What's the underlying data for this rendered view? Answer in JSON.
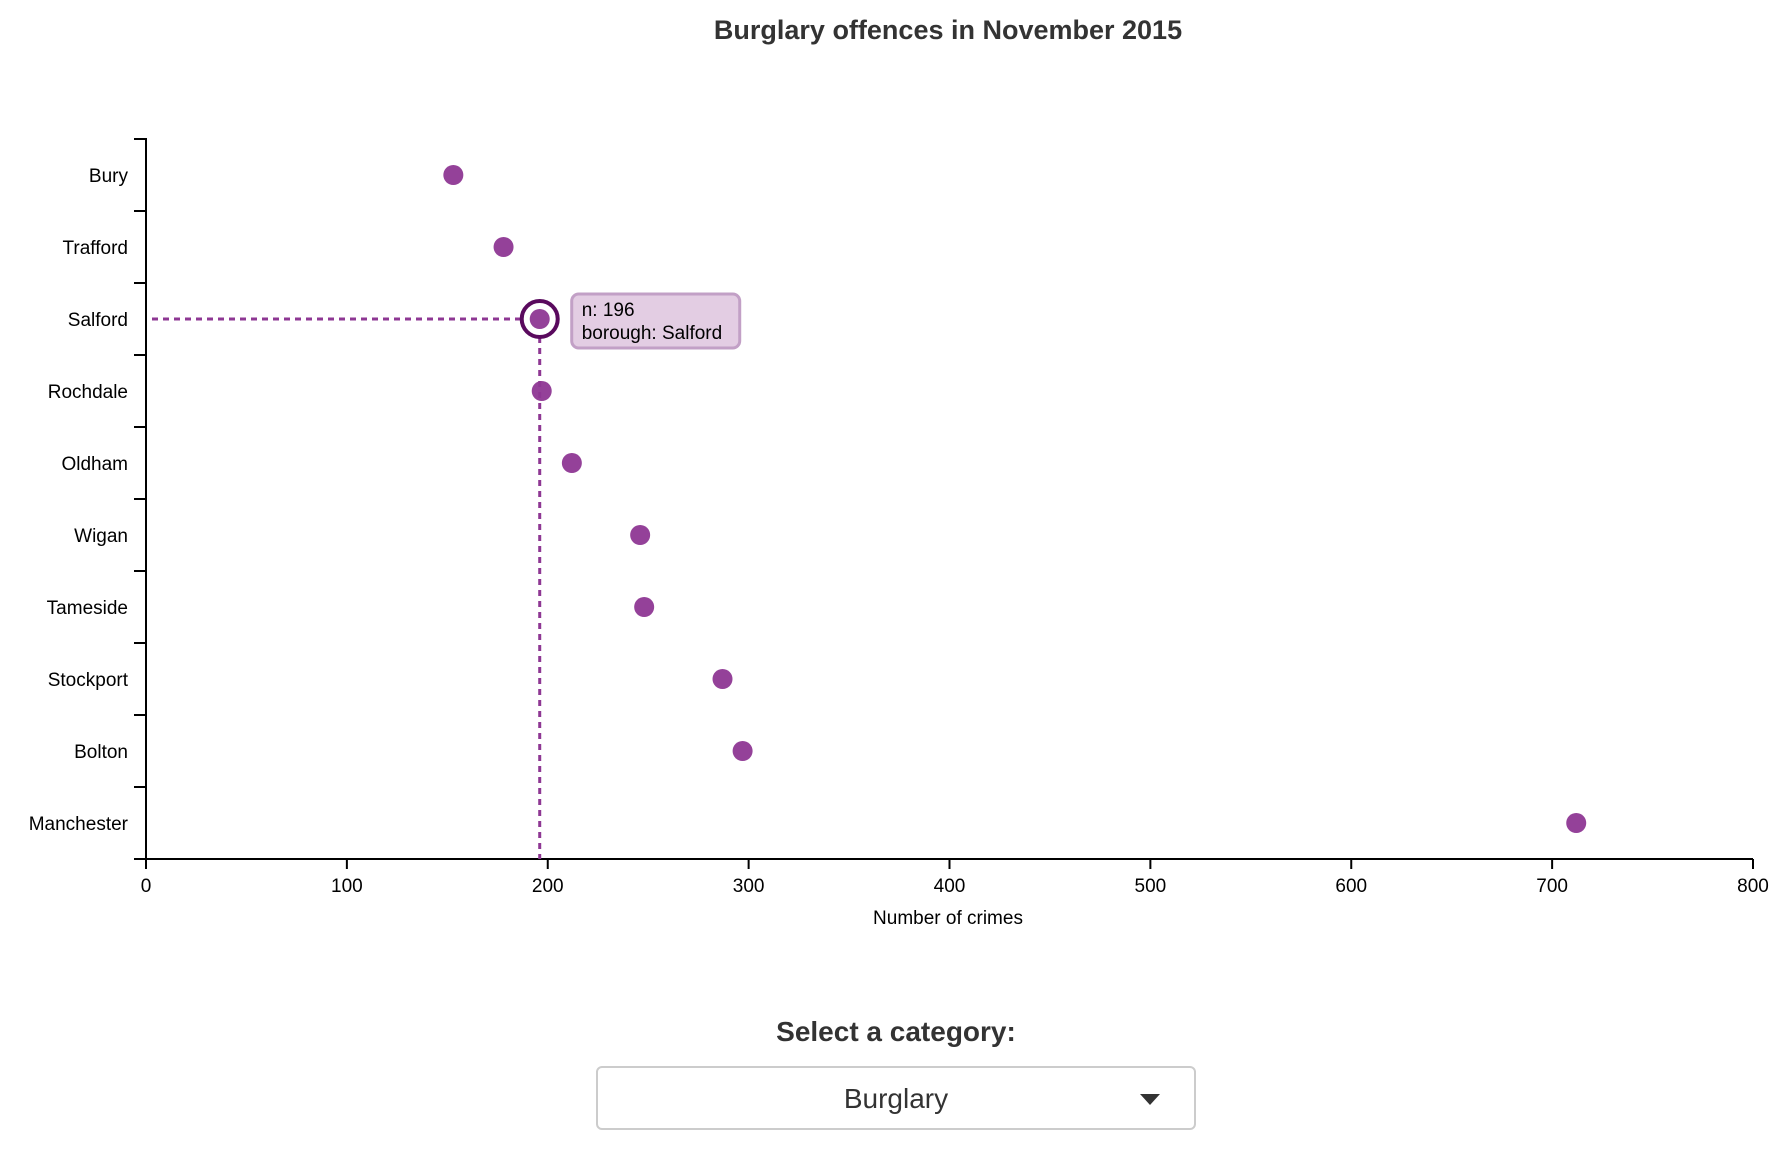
{
  "chart_data": {
    "type": "scatter",
    "title": "Burglary offences in November 2015",
    "xlabel": "Number of crimes",
    "ylabel": "",
    "xlim": [
      0,
      800
    ],
    "xticks": [
      0,
      100,
      200,
      300,
      400,
      500,
      600,
      700,
      800
    ],
    "categories": [
      "Bury",
      "Trafford",
      "Salford",
      "Rochdale",
      "Oldham",
      "Wigan",
      "Tameside",
      "Stockport",
      "Bolton",
      "Manchester"
    ],
    "values": [
      153,
      178,
      196,
      197,
      212,
      246,
      248,
      287,
      297,
      712
    ],
    "point_color": "#8e3793",
    "highlight": {
      "borough": "Salford",
      "value": 196,
      "tooltip_lines": [
        "n: 196",
        "borough: Salford"
      ],
      "ring_color": "#5a0a5e",
      "tooltip_bg": "#e3cde3",
      "tooltip_border": "#c2a0c6"
    }
  },
  "control": {
    "label": "Select a category:",
    "selected": "Burglary"
  }
}
